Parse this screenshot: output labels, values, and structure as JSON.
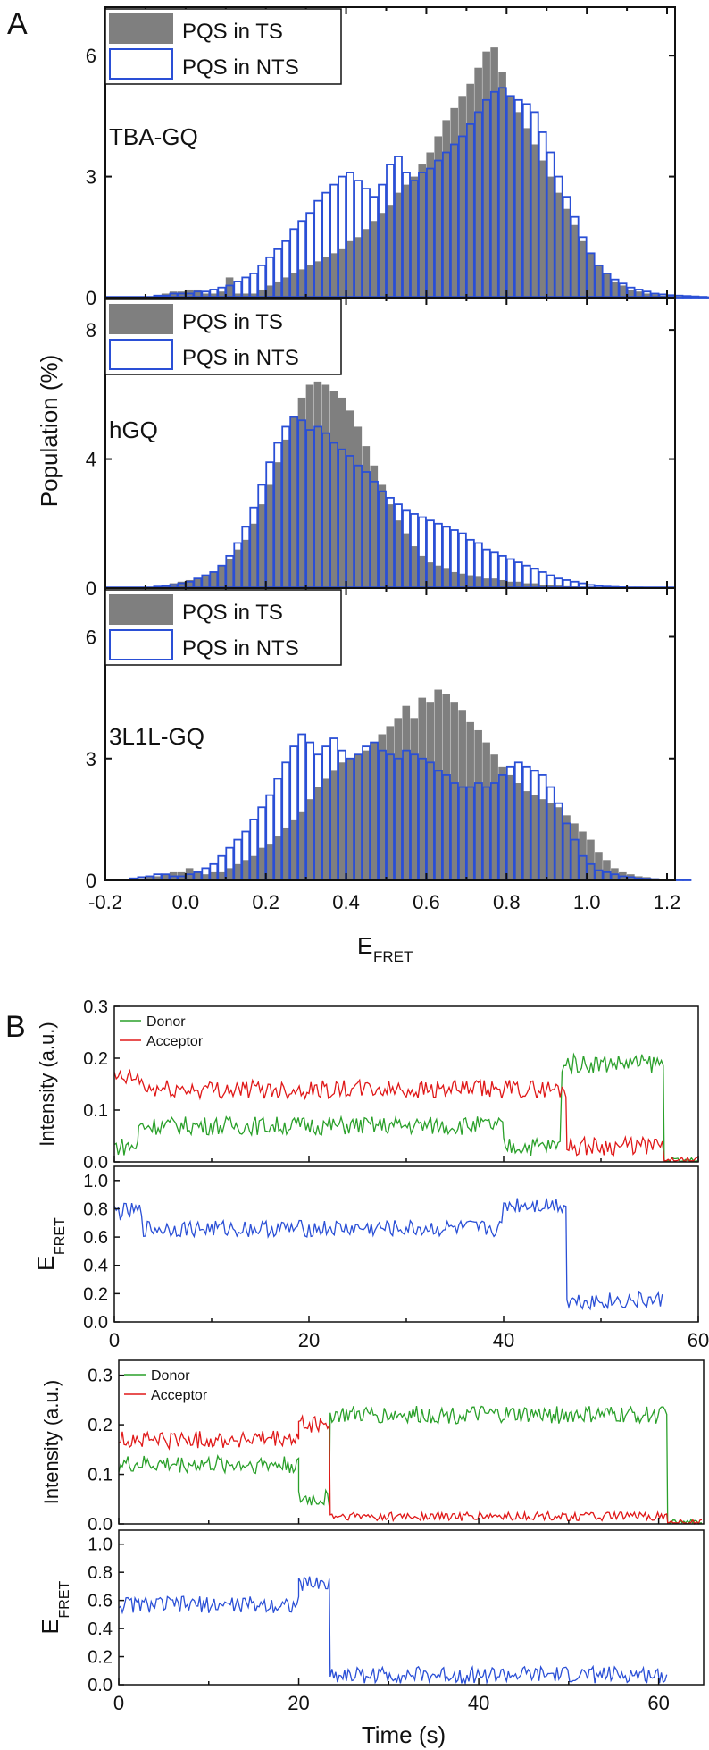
{
  "colors": {
    "ts_fill": "#7f7f7f",
    "nts_edge": "#2a4fd6",
    "donor": "#2aa02a",
    "acceptor": "#e01818",
    "efret": "#2a4fd6"
  },
  "panel_a": {
    "letter": "A",
    "ylabel": "Population (%)",
    "xlabel_main": "E",
    "xlabel_sub": "FRET",
    "legend": [
      "PQS in TS",
      "PQS in NTS"
    ]
  },
  "panel_b": {
    "letter": "B",
    "time_label": "Time (s)"
  },
  "chart_data": [
    {
      "type": "bar",
      "id": "tba",
      "title": "TBA-GQ",
      "xlabel": "E_FRET",
      "ylabel": "Population (%)",
      "xlim": [
        -0.2,
        1.22
      ],
      "ylim": [
        0,
        7.2
      ],
      "yticks": [
        0,
        3,
        6
      ],
      "xticks": [
        -0.2,
        0.0,
        0.2,
        0.4,
        0.6,
        0.8,
        1.0,
        1.2
      ],
      "bin_width": 0.02,
      "x_start": -0.08,
      "series": [
        {
          "name": "PQS in TS",
          "values": [
            0.05,
            0.1,
            0.15,
            0.15,
            0.2,
            0.2,
            0.1,
            0.1,
            0.15,
            0.5,
            0.1,
            0.1,
            0.1,
            0.2,
            0.3,
            0.4,
            0.5,
            0.6,
            0.7,
            0.8,
            0.9,
            1.0,
            1.1,
            1.2,
            1.4,
            1.5,
            1.7,
            1.9,
            2.1,
            2.3,
            2.6,
            2.8,
            3.0,
            3.3,
            3.6,
            4.0,
            4.4,
            4.7,
            5.0,
            5.3,
            5.7,
            6.1,
            6.2,
            5.6,
            5.0,
            4.6,
            4.2,
            3.8,
            3.4,
            3.0,
            2.6,
            2.2,
            1.8,
            1.4,
            1.1,
            0.8,
            0.6,
            0.4,
            0.3,
            0.2,
            0.15,
            0.1,
            0.08,
            0.05,
            0.04,
            0.03,
            0.02,
            0.02,
            0.01,
            0.01
          ]
        },
        {
          "name": "PQS in NTS",
          "values": [
            0.05,
            0.05,
            0.1,
            0.1,
            0.1,
            0.15,
            0.15,
            0.2,
            0.25,
            0.3,
            0.4,
            0.5,
            0.6,
            0.8,
            1.0,
            1.2,
            1.4,
            1.7,
            1.9,
            2.1,
            2.4,
            2.6,
            2.8,
            3.0,
            3.1,
            2.9,
            2.7,
            2.5,
            2.8,
            3.3,
            3.5,
            3.1,
            2.9,
            3.1,
            3.2,
            3.4,
            3.6,
            3.8,
            4.0,
            4.3,
            4.6,
            4.9,
            5.1,
            5.2,
            5.0,
            4.9,
            4.8,
            4.6,
            4.1,
            3.6,
            3.0,
            2.5,
            2.0,
            1.5,
            1.1,
            0.8,
            0.6,
            0.45,
            0.35,
            0.25,
            0.2,
            0.15,
            0.1,
            0.08,
            0.06,
            0.05,
            0.04,
            0.03,
            0.02,
            0.01
          ]
        }
      ]
    },
    {
      "type": "bar",
      "id": "hgq",
      "title": "hGQ",
      "xlabel": "E_FRET",
      "ylabel": "Population (%)",
      "xlim": [
        -0.2,
        1.22
      ],
      "ylim": [
        0,
        9.0
      ],
      "yticks": [
        0,
        4,
        8
      ],
      "bin_width": 0.02,
      "x_start": -0.08,
      "series": [
        {
          "name": "PQS in TS",
          "values": [
            0.05,
            0.1,
            0.15,
            0.2,
            0.25,
            0.3,
            0.4,
            0.5,
            0.7,
            0.9,
            1.2,
            1.5,
            2.0,
            2.6,
            3.2,
            3.9,
            4.6,
            5.3,
            5.9,
            6.3,
            6.4,
            6.3,
            6.1,
            5.9,
            5.5,
            5.0,
            4.4,
            3.8,
            3.2,
            2.6,
            2.1,
            1.7,
            1.3,
            1.0,
            0.8,
            0.7,
            0.6,
            0.5,
            0.45,
            0.4,
            0.35,
            0.3,
            0.3,
            0.25,
            0.2,
            0.2,
            0.15,
            0.15,
            0.1,
            0.1,
            0.08,
            0.06,
            0.05,
            0.04,
            0.03,
            0.02,
            0.02,
            0.01,
            0.01,
            0.0,
            0.0,
            0.0,
            0.0,
            0.0,
            0.0,
            0.0,
            0.0,
            0.0,
            0.0,
            0.0
          ]
        },
        {
          "name": "PQS in NTS",
          "values": [
            0.05,
            0.08,
            0.1,
            0.15,
            0.2,
            0.3,
            0.4,
            0.5,
            0.7,
            1.0,
            1.4,
            1.9,
            2.5,
            3.2,
            3.9,
            4.5,
            5.0,
            5.3,
            5.2,
            4.9,
            5.0,
            4.8,
            4.5,
            4.3,
            4.1,
            3.8,
            3.6,
            3.3,
            3.0,
            2.8,
            2.6,
            2.4,
            2.3,
            2.2,
            2.1,
            2.0,
            1.9,
            1.8,
            1.7,
            1.5,
            1.4,
            1.2,
            1.1,
            1.0,
            0.9,
            0.8,
            0.7,
            0.6,
            0.5,
            0.4,
            0.3,
            0.25,
            0.2,
            0.15,
            0.1,
            0.08,
            0.05,
            0.04,
            0.03,
            0.02,
            0.02,
            0.01,
            0.01,
            0.0,
            0.0,
            0.0,
            0.0,
            0.0,
            0.0,
            0.0
          ]
        }
      ]
    },
    {
      "type": "bar",
      "id": "3l1l",
      "title": "3L1L-GQ",
      "xlabel": "E_FRET",
      "ylabel": "Population (%)",
      "xlim": [
        -0.2,
        1.22
      ],
      "ylim": [
        0,
        7.2
      ],
      "yticks": [
        0,
        3,
        6
      ],
      "xticks": [
        -0.2,
        0.0,
        0.2,
        0.4,
        0.6,
        0.8,
        1.0,
        1.2
      ],
      "xticklabels": [
        "-0.2",
        "0.0",
        "0.2",
        "0.4",
        "0.6",
        "0.8",
        "1.0",
        "1.2"
      ],
      "bin_width": 0.02,
      "x_start": -0.14,
      "series": [
        {
          "name": "PQS in TS",
          "values": [
            0.05,
            0.05,
            0.1,
            0.1,
            0.15,
            0.2,
            0.2,
            0.3,
            0.2,
            0.15,
            0.2,
            0.2,
            0.3,
            0.4,
            0.5,
            0.6,
            0.8,
            0.9,
            1.1,
            1.3,
            1.5,
            1.7,
            2.0,
            2.3,
            2.5,
            2.7,
            2.9,
            3.0,
            3.1,
            3.2,
            3.4,
            3.6,
            3.8,
            4.0,
            4.3,
            4.0,
            4.5,
            4.4,
            4.7,
            4.6,
            4.4,
            4.2,
            3.9,
            3.7,
            3.4,
            3.1,
            2.8,
            2.6,
            2.4,
            2.2,
            2.1,
            2.0,
            1.9,
            1.8,
            1.6,
            1.4,
            1.2,
            1.0,
            0.7,
            0.5,
            0.3,
            0.2,
            0.15,
            0.1,
            0.08,
            0.05,
            0.04,
            0.03,
            0.02,
            0.01
          ]
        },
        {
          "name": "PQS in NTS",
          "values": [
            0.05,
            0.08,
            0.1,
            0.15,
            0.15,
            0.1,
            0.1,
            0.15,
            0.2,
            0.3,
            0.4,
            0.6,
            0.8,
            1.0,
            1.2,
            1.5,
            1.8,
            2.1,
            2.5,
            2.9,
            3.3,
            3.6,
            3.4,
            3.1,
            3.3,
            3.5,
            3.2,
            3.0,
            3.1,
            3.3,
            3.4,
            3.2,
            3.1,
            3.0,
            3.2,
            3.1,
            3.0,
            2.9,
            2.7,
            2.6,
            2.4,
            2.3,
            2.3,
            2.4,
            2.3,
            2.4,
            2.6,
            2.8,
            2.9,
            2.8,
            2.7,
            2.6,
            2.3,
            1.9,
            1.4,
            1.0,
            0.6,
            0.4,
            0.25,
            0.2,
            0.15,
            0.1,
            0.08,
            0.05,
            0.04,
            0.03,
            0.02,
            0.02,
            0.01,
            0.01
          ]
        }
      ]
    },
    {
      "type": "line",
      "id": "trace1_intensity",
      "ylabel": "Intensity (a.u.)",
      "xlim": [
        0,
        60
      ],
      "ylim": [
        0,
        0.3
      ],
      "yticks": [
        0.0,
        0.1,
        0.2,
        0.3
      ],
      "yticklabels": [
        "0.0",
        "0.1",
        "0.2",
        "0.3"
      ],
      "legend": [
        "Donor",
        "Acceptor"
      ],
      "series": [
        {
          "name": "Donor",
          "segments": [
            {
              "t0": 0,
              "t1": 2.5,
              "level": 0.03
            },
            {
              "t0": 2.5,
              "t1": 40,
              "level": 0.07
            },
            {
              "t0": 40,
              "t1": 46,
              "level": 0.03
            },
            {
              "t0": 46,
              "t1": 56.5,
              "level": 0.19
            },
            {
              "t0": 56.5,
              "t1": 60,
              "level": 0.0
            }
          ]
        },
        {
          "name": "Acceptor",
          "segments": [
            {
              "t0": 0,
              "t1": 3,
              "level": 0.16
            },
            {
              "t0": 3,
              "t1": 46.5,
              "level": 0.14
            },
            {
              "t0": 46.5,
              "t1": 56.5,
              "level": 0.03
            },
            {
              "t0": 56.5,
              "t1": 60,
              "level": 0.0
            }
          ]
        }
      ]
    },
    {
      "type": "line",
      "id": "trace1_efret",
      "ylabel": "E_FRET",
      "xlabel": "",
      "xlim": [
        0,
        60
      ],
      "ylim": [
        0,
        1.1
      ],
      "yticks": [
        0.0,
        0.2,
        0.4,
        0.6,
        0.8,
        1.0
      ],
      "yticklabels": [
        "0.0",
        "0.2",
        "0.4",
        "0.6",
        "0.8",
        "1.0"
      ],
      "xticks": [
        0,
        20,
        40,
        60
      ],
      "xticklabels": [
        "0",
        "20",
        "40",
        "60"
      ],
      "series": [
        {
          "name": "E_FRET",
          "segments": [
            {
              "t0": 0,
              "t1": 3,
              "level": 0.78
            },
            {
              "t0": 3,
              "t1": 40,
              "level": 0.66
            },
            {
              "t0": 40,
              "t1": 46.5,
              "level": 0.83
            },
            {
              "t0": 46.5,
              "t1": 56.5,
              "level": 0.15
            }
          ]
        }
      ]
    },
    {
      "type": "line",
      "id": "trace2_intensity",
      "ylabel": "Intensity (a.u.)",
      "xlim": [
        0,
        65
      ],
      "ylim": [
        0,
        0.33
      ],
      "yticks": [
        0.0,
        0.1,
        0.2,
        0.3
      ],
      "yticklabels": [
        "0.0",
        "0.1",
        "0.2",
        "0.3"
      ],
      "legend": [
        "Donor",
        "Acceptor"
      ],
      "series": [
        {
          "name": "Donor",
          "segments": [
            {
              "t0": 0,
              "t1": 20,
              "level": 0.12
            },
            {
              "t0": 20,
              "t1": 23.5,
              "level": 0.05
            },
            {
              "t0": 23.5,
              "t1": 61,
              "level": 0.22
            },
            {
              "t0": 61,
              "t1": 65,
              "level": 0.0
            }
          ]
        },
        {
          "name": "Acceptor",
          "segments": [
            {
              "t0": 0,
              "t1": 20,
              "level": 0.17
            },
            {
              "t0": 20,
              "t1": 23.5,
              "level": 0.2
            },
            {
              "t0": 23.5,
              "t1": 61,
              "level": 0.015
            },
            {
              "t0": 61,
              "t1": 65,
              "level": 0.0
            }
          ]
        }
      ]
    },
    {
      "type": "line",
      "id": "trace2_efret",
      "ylabel": "E_FRET",
      "xlabel": "Time (s)",
      "xlim": [
        0,
        65
      ],
      "ylim": [
        0,
        1.1
      ],
      "yticks": [
        0.0,
        0.2,
        0.4,
        0.6,
        0.8,
        1.0
      ],
      "yticklabels": [
        "0.0",
        "0.2",
        "0.4",
        "0.6",
        "0.8",
        "1.0"
      ],
      "xticks": [
        0,
        20,
        40,
        60
      ],
      "xticklabels": [
        "0",
        "20",
        "40",
        "60"
      ],
      "series": [
        {
          "name": "E_FRET",
          "segments": [
            {
              "t0": 0,
              "t1": 20,
              "level": 0.57
            },
            {
              "t0": 20,
              "t1": 23.5,
              "level": 0.72
            },
            {
              "t0": 23.5,
              "t1": 61,
              "level": 0.07
            }
          ]
        }
      ]
    }
  ]
}
